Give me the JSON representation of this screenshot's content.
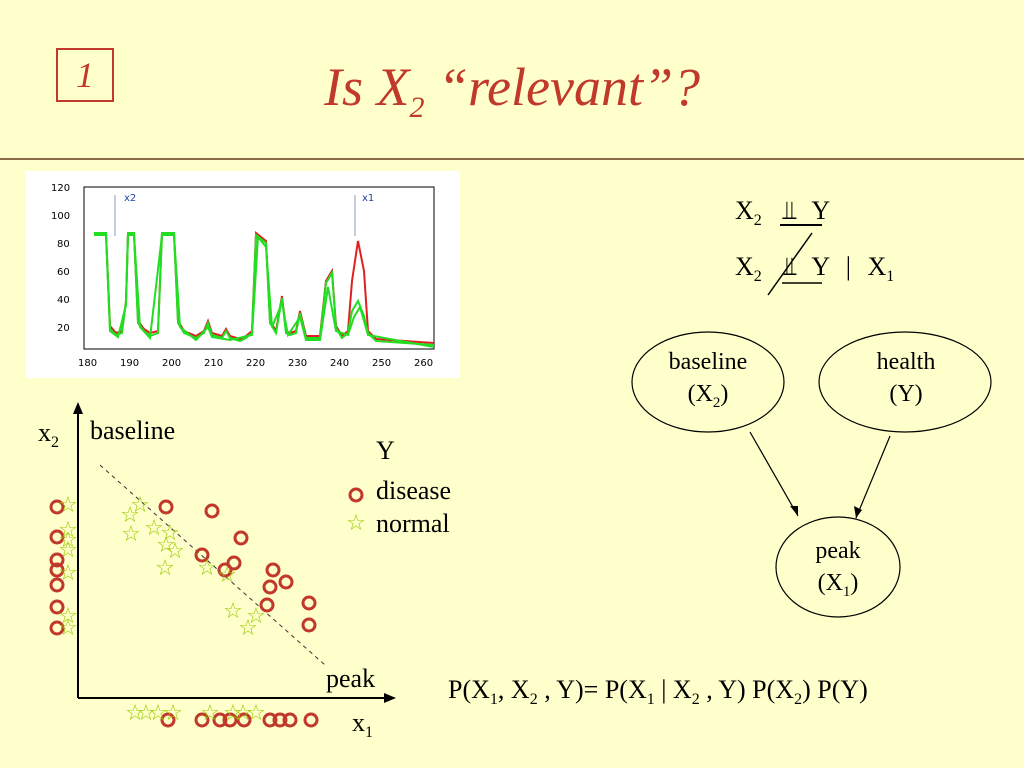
{
  "slide": {
    "badge": "1",
    "title_main": "Is X",
    "title_sub": "2",
    "title_rest": " “relevant”?"
  },
  "spectrum_chart": {
    "y_ticks": [
      "120",
      "100",
      "80",
      "60",
      "40",
      "20"
    ],
    "x_ticks": [
      "180",
      "190",
      "200",
      "210",
      "220",
      "230",
      "240",
      "250",
      "260"
    ],
    "marker_x2": "x2",
    "marker_x1": "x1",
    "colors": {
      "disease": "#E02020",
      "normal": "#22DD22"
    }
  },
  "independence": {
    "line1": {
      "a": "X",
      "a_sub": "2",
      "rel": "⫫",
      "b": "Y"
    },
    "line2": {
      "a": "X",
      "a_sub": "2",
      "rel": "⫫",
      "b": "Y",
      "bar": "|",
      "c": "X",
      "c_sub": "1"
    }
  },
  "network": {
    "baseline_label": "baseline",
    "baseline_var": "(X",
    "baseline_sub": "2",
    "baseline_close": ")",
    "health_label": "health",
    "health_var": "(Y)",
    "peak_label": "peak",
    "peak_var": "(X",
    "peak_sub": "1",
    "peak_close": ")"
  },
  "scatter": {
    "y_axis_label": "x",
    "y_axis_sub": "2",
    "y_axis_name": "baseline",
    "x_axis_label": "x",
    "x_axis_sub": "1",
    "x_axis_name": "peak",
    "legend_title": "Y",
    "legend_disease": "disease",
    "legend_normal": "normal",
    "colors": {
      "disease": "#C0392B",
      "normal": "#99CC00"
    }
  },
  "formula": {
    "p1": "P(X",
    "s1": "1",
    "p2": ", X",
    "s2": "2",
    "p3": " , Y)= P(X",
    "s3": "1",
    "p4": " | X",
    "s4": "2",
    "p5": " , Y) P(X",
    "s5": "2",
    "p6": ") P(Y)"
  }
}
